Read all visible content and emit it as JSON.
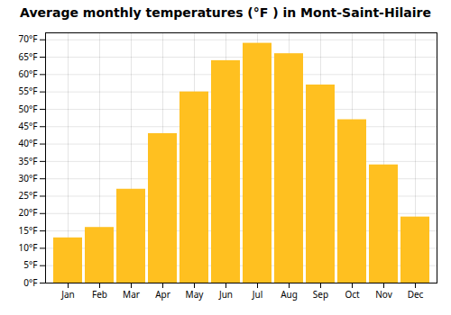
{
  "chart_data": {
    "type": "bar",
    "title": "Average monthly temperatures (°F ) in Mont-Saint-Hilaire",
    "categories": [
      "Jan",
      "Feb",
      "Mar",
      "Apr",
      "May",
      "Jun",
      "Jul",
      "Aug",
      "Sep",
      "Oct",
      "Nov",
      "Dec"
    ],
    "values": [
      13,
      16,
      27,
      43,
      55,
      64,
      69,
      66,
      57,
      47,
      34,
      19
    ],
    "color": "#FFC020",
    "ylim": [
      0,
      72
    ],
    "yticks": [
      {
        "value": 0,
        "label": "0°F"
      },
      {
        "value": 5,
        "label": "5°F"
      },
      {
        "value": 10,
        "label": "10°F"
      },
      {
        "value": 15,
        "label": "15°F"
      },
      {
        "value": 20,
        "label": "20°F"
      },
      {
        "value": 25,
        "label": "25°F"
      },
      {
        "value": 30,
        "label": "30°F"
      },
      {
        "value": 35,
        "label": "35°F"
      },
      {
        "value": 40,
        "label": "40°F"
      },
      {
        "value": 45,
        "label": "45°F"
      },
      {
        "value": 50,
        "label": "50°F"
      },
      {
        "value": 55,
        "label": "55°F"
      },
      {
        "value": 60,
        "label": "60°F"
      },
      {
        "value": 65,
        "label": "65°F"
      },
      {
        "value": 70,
        "label": "70°F"
      }
    ],
    "grid": true
  }
}
